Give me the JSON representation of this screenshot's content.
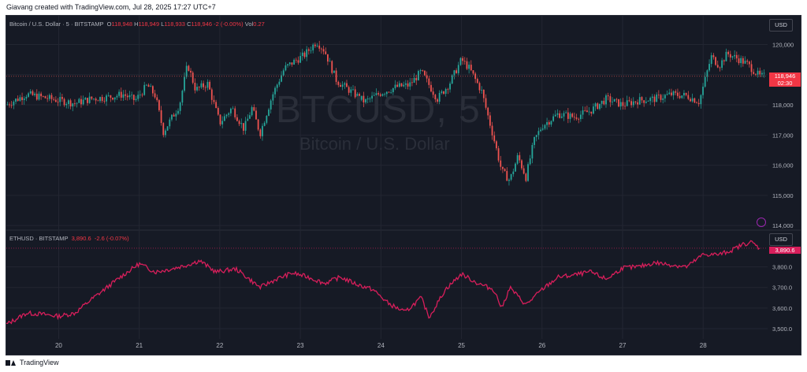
{
  "caption": "Giavang created with TradingView.com, Jul 28, 2025 17:27 UTC+7",
  "footer": {
    "brand": "TradingView"
  },
  "colors": {
    "background": "#161a25",
    "up": "#26a69a",
    "down": "#ef5350",
    "eth_line": "#d81e5b",
    "grid": "#232632"
  },
  "btc_legend": {
    "symbol": "Bitcoin / U.S. Dollar · 5 · BITSTAMP",
    "o_label": "O",
    "o_value": "118,948",
    "h_label": "H",
    "h_value": "118,949",
    "l_label": "L",
    "l_value": "118,933",
    "c_label": "C",
    "c_value": "118,946",
    "change": "-2 (-0.00%)",
    "vol_label": "Vol",
    "vol_value": "0.27"
  },
  "eth_legend": {
    "symbol": "ETHUSD · BITSTAMP",
    "value": "3,890.6",
    "change": "-2.6 (-0.07%)"
  },
  "watermark": {
    "ticker": "BTCUSD, 5",
    "name": "Bitcoin / U.S. Dollar"
  },
  "currency_button": "USD",
  "btc_price_tag": {
    "price": "118,946",
    "countdown": "02:30"
  },
  "eth_price_tag": "3,890.6",
  "chart_data": [
    {
      "type": "candlestick",
      "title": "Bitcoin / U.S. Dollar · 5 · BITSTAMP",
      "ylim": [
        113900,
        120300
      ],
      "y_ticks": [
        "120,000",
        "119,000",
        "118,000",
        "117,000",
        "116,000",
        "115,000",
        "114,000"
      ],
      "y_tick_values": [
        120000,
        119000,
        118000,
        117000,
        116000,
        115000,
        114000
      ],
      "x_ticks": [
        "20",
        "21",
        "22",
        "23",
        "24",
        "25",
        "26",
        "27",
        "28"
      ],
      "x_tick_values": [
        20,
        21,
        22,
        23,
        24,
        25,
        26,
        27,
        28
      ],
      "xlim": [
        19.35,
        28.8
      ],
      "path_x": [
        19.35,
        19.6,
        19.8,
        20.0,
        20.2,
        20.4,
        20.6,
        20.8,
        20.95,
        21.1,
        21.2,
        21.3,
        21.5,
        21.6,
        21.7,
        21.85,
        22.0,
        22.15,
        22.3,
        22.4,
        22.5,
        22.65,
        22.8,
        22.9,
        23.05,
        23.2,
        23.3,
        23.45,
        23.6,
        23.8,
        24.0,
        24.2,
        24.35,
        24.5,
        24.7,
        24.85,
        25.0,
        25.1,
        25.25,
        25.4,
        25.5,
        25.6,
        25.7,
        25.8,
        25.9,
        26.0,
        26.2,
        26.4,
        26.6,
        26.8,
        27.0,
        27.2,
        27.4,
        27.6,
        27.8,
        27.95,
        28.0,
        28.1,
        28.2,
        28.3,
        28.45,
        28.55,
        28.7
      ],
      "path_close": [
        118000,
        118350,
        118250,
        118150,
        118050,
        118200,
        118250,
        118350,
        118150,
        118650,
        118300,
        117100,
        118000,
        119350,
        118500,
        118700,
        117400,
        117900,
        117200,
        117900,
        117050,
        118300,
        119200,
        119400,
        119650,
        120100,
        119800,
        118800,
        118500,
        118100,
        118400,
        118600,
        118650,
        119100,
        118200,
        118700,
        119500,
        119200,
        118450,
        116900,
        115800,
        115500,
        116300,
        115600,
        116800,
        117300,
        117700,
        117600,
        117800,
        118200,
        118000,
        118150,
        118200,
        118350,
        118300,
        118100,
        118600,
        119600,
        119300,
        119700,
        119500,
        119350,
        118946
      ]
    },
    {
      "type": "line",
      "title": "ETHUSD · BITSTAMP",
      "ylim": [
        3450,
        3940
      ],
      "y_ticks": [
        "3,800.0",
        "3,700.0",
        "3,600.0",
        "3,500.0"
      ],
      "y_tick_values": [
        3800,
        3700,
        3600,
        3500
      ],
      "xlim": [
        19.35,
        28.8
      ],
      "x": [
        19.35,
        19.6,
        19.8,
        20.0,
        20.2,
        20.4,
        20.6,
        20.8,
        21.0,
        21.2,
        21.4,
        21.6,
        21.75,
        21.95,
        22.2,
        22.5,
        22.7,
        22.9,
        23.1,
        23.3,
        23.5,
        23.7,
        23.9,
        24.1,
        24.3,
        24.5,
        24.6,
        24.8,
        25.0,
        25.2,
        25.4,
        25.5,
        25.6,
        25.8,
        26.0,
        26.2,
        26.4,
        26.6,
        26.8,
        27.0,
        27.2,
        27.4,
        27.6,
        27.8,
        28.0,
        28.2,
        28.35,
        28.5,
        28.6,
        28.7
      ],
      "y": [
        3520,
        3575,
        3570,
        3560,
        3575,
        3640,
        3700,
        3760,
        3815,
        3775,
        3790,
        3810,
        3830,
        3775,
        3790,
        3700,
        3740,
        3770,
        3750,
        3720,
        3750,
        3715,
        3690,
        3620,
        3580,
        3650,
        3555,
        3690,
        3765,
        3720,
        3690,
        3600,
        3700,
        3615,
        3690,
        3750,
        3760,
        3775,
        3740,
        3795,
        3800,
        3820,
        3810,
        3800,
        3860,
        3860,
        3880,
        3910,
        3920,
        3890.6
      ]
    }
  ]
}
